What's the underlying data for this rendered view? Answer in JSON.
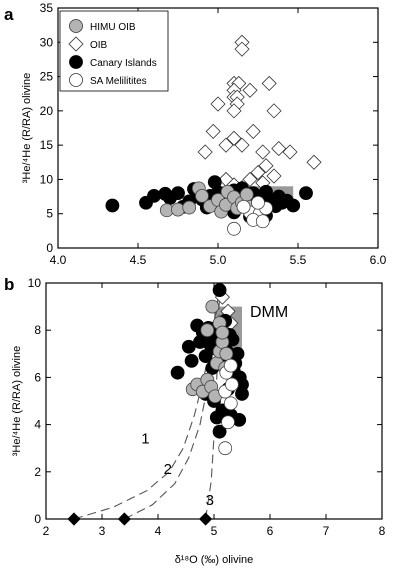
{
  "colors": {
    "himu": "#b4b4b4",
    "oib_fill": "#ffffff",
    "canary": "#000000",
    "sa": "#ffffff",
    "dmm_box": "#9a9a9a",
    "axis": "#000000"
  },
  "chart_data": [
    {
      "type": "scatter",
      "panel": "a",
      "xlim": [
        4.0,
        6.0
      ],
      "ylim": [
        0,
        35
      ],
      "xticks": [
        "4.0",
        "4.5",
        "5.0",
        "5.5",
        "6.0"
      ],
      "yticks": [
        "0",
        "5",
        "10",
        "15",
        "20",
        "25",
        "30",
        "35"
      ],
      "xlabel": "",
      "ylabel": "³He/⁴He (R/RA) olivine",
      "legend_position": "top-left",
      "legend": [
        {
          "label": "HIMU OIB",
          "key": "himu"
        },
        {
          "label": "OIB",
          "key": "oib"
        },
        {
          "label": "Canary Islands",
          "key": "canary"
        },
        {
          "label": "SA Melilitites",
          "key": "sa"
        }
      ],
      "dmm_range": {
        "x": [
          5.0,
          5.47
        ],
        "y": [
          7.0,
          9.0
        ]
      },
      "series": [
        {
          "name": "OIB",
          "key": "oib",
          "marker": "diamond",
          "points": [
            [
              5.15,
              30
            ],
            [
              5.15,
              29
            ],
            [
              5.1,
              24
            ],
            [
              5.13,
              24
            ],
            [
              5.32,
              24
            ],
            [
              5.1,
              23
            ],
            [
              5.2,
              23
            ],
            [
              5.1,
              22
            ],
            [
              5.12,
              22
            ],
            [
              5.0,
              21
            ],
            [
              5.12,
              21
            ],
            [
              5.1,
              20
            ],
            [
              5.35,
              20
            ],
            [
              4.97,
              17
            ],
            [
              5.22,
              17
            ],
            [
              5.38,
              14.5
            ],
            [
              4.92,
              14
            ],
            [
              5.1,
              16
            ],
            [
              5.05,
              15
            ],
            [
              5.15,
              15
            ],
            [
              5.28,
              14
            ],
            [
              5.45,
              14
            ],
            [
              5.3,
              12
            ],
            [
              5.25,
              11
            ],
            [
              5.6,
              12.5
            ],
            [
              5.05,
              10
            ],
            [
              5.2,
              10
            ],
            [
              5.35,
              10.5
            ],
            [
              5.28,
              9.5
            ],
            [
              5.1,
              9.2
            ],
            [
              5.15,
              8.8
            ]
          ]
        },
        {
          "name": "Canary Islands",
          "key": "canary",
          "marker": "circle",
          "points": [
            [
              4.34,
              6.2
            ],
            [
              4.55,
              6.6
            ],
            [
              4.6,
              7.6
            ],
            [
              4.67,
              7.9
            ],
            [
              4.7,
              7.3
            ],
            [
              4.75,
              8.0
            ],
            [
              4.78,
              6.0
            ],
            [
              4.82,
              6.8
            ],
            [
              4.85,
              8.6
            ],
            [
              4.88,
              8.0
            ],
            [
              4.9,
              7.1
            ],
            [
              4.95,
              7.6
            ],
            [
              4.98,
              9.6
            ],
            [
              5.0,
              8.1
            ],
            [
              5.02,
              7.0
            ],
            [
              5.05,
              7.9
            ],
            [
              5.07,
              6.8
            ],
            [
              5.1,
              8.4
            ],
            [
              5.12,
              7.5
            ],
            [
              5.15,
              8.7
            ],
            [
              5.18,
              7.3
            ],
            [
              5.2,
              6.4
            ],
            [
              5.22,
              8.0
            ],
            [
              5.25,
              7.2
            ],
            [
              5.27,
              5.8
            ],
            [
              5.3,
              8.2
            ],
            [
              5.33,
              7.0
            ],
            [
              5.36,
              6.1
            ],
            [
              5.38,
              7.5
            ],
            [
              5.4,
              6.6
            ],
            [
              5.43,
              6.9
            ],
            [
              5.47,
              6.2
            ],
            [
              5.55,
              8.0
            ],
            [
              4.93,
              5.9
            ],
            [
              5.1,
              5.2
            ],
            [
              5.2,
              4.6
            ],
            [
              5.3,
              4.7
            ],
            [
              5.0,
              6.5
            ]
          ]
        },
        {
          "name": "HIMU OIB",
          "key": "himu",
          "marker": "circle",
          "points": [
            [
              4.68,
              5.5
            ],
            [
              4.75,
              5.6
            ],
            [
              4.82,
              5.9
            ],
            [
              4.88,
              8.7
            ],
            [
              4.9,
              7.6
            ],
            [
              4.95,
              6.1
            ],
            [
              5.0,
              7.0
            ],
            [
              5.02,
              5.3
            ],
            [
              5.05,
              6.3
            ],
            [
              5.06,
              8.2
            ],
            [
              5.1,
              7.4
            ],
            [
              5.12,
              5.8
            ],
            [
              5.15,
              6.6
            ],
            [
              5.18,
              7.8
            ],
            [
              5.2,
              6.0
            ]
          ]
        },
        {
          "name": "SA Melilitites",
          "key": "sa",
          "marker": "circle",
          "points": [
            [
              5.1,
              2.8
            ],
            [
              5.2,
              5.2
            ],
            [
              5.26,
              5.0
            ],
            [
              5.22,
              4.1
            ],
            [
              5.28,
              3.9
            ],
            [
              5.3,
              5.8
            ],
            [
              5.16,
              6.0
            ],
            [
              5.25,
              6.6
            ]
          ]
        }
      ]
    },
    {
      "type": "scatter",
      "panel": "b",
      "xlim": [
        2,
        8
      ],
      "ylim": [
        0,
        10
      ],
      "xticks": [
        "2",
        "3",
        "4",
        "5",
        "6",
        "7",
        "8"
      ],
      "yticks": [
        "0",
        "2",
        "4",
        "6",
        "8",
        "10"
      ],
      "xlabel": "δ¹⁸O (‰) olivine",
      "ylabel": "³He/⁴He (R/RA) olivine",
      "dmm_label": "DMM",
      "dmm_range": {
        "x": [
          5.0,
          5.5
        ],
        "y": [
          7.2,
          9.0
        ]
      },
      "mixing_curves": [
        {
          "label": "1",
          "points": [
            [
              2.5,
              0
            ],
            [
              3.2,
              0.5
            ],
            [
              3.8,
              1.2
            ],
            [
              4.2,
              2.0
            ],
            [
              4.45,
              3.0
            ],
            [
              4.65,
              4.4
            ],
            [
              4.82,
              6.0
            ],
            [
              4.95,
              7.6
            ],
            [
              5.05,
              9.0
            ],
            [
              5.1,
              9.8
            ]
          ]
        },
        {
          "label": "2",
          "points": [
            [
              3.4,
              0
            ],
            [
              3.9,
              0.6
            ],
            [
              4.3,
              1.5
            ],
            [
              4.55,
              2.6
            ],
            [
              4.75,
              4.0
            ],
            [
              4.9,
              5.8
            ],
            [
              5.0,
              7.5
            ],
            [
              5.05,
              9.0
            ],
            [
              5.1,
              9.8
            ]
          ]
        },
        {
          "label": "3",
          "points": [
            [
              4.85,
              0
            ],
            [
              4.95,
              1.6
            ],
            [
              5.0,
              3.5
            ],
            [
              5.05,
              6.0
            ],
            [
              5.08,
              8.0
            ],
            [
              5.1,
              9.8
            ]
          ]
        }
      ],
      "endmembers": [
        [
          2.5,
          0
        ],
        [
          3.4,
          0
        ],
        [
          4.85,
          0
        ]
      ],
      "series": [
        {
          "name": "OIB",
          "key": "oib",
          "marker": "diamond",
          "points": [
            [
              5.15,
              9.4
            ],
            [
              5.25,
              8.8
            ],
            [
              5.3,
              8.3
            ]
          ]
        },
        {
          "name": "Canary Islands",
          "key": "canary",
          "marker": "circle",
          "points": [
            [
              4.35,
              6.2
            ],
            [
              4.55,
              7.3
            ],
            [
              4.6,
              6.7
            ],
            [
              4.7,
              8.2
            ],
            [
              4.75,
              7.5
            ],
            [
              4.8,
              7.9
            ],
            [
              4.85,
              6.9
            ],
            [
              4.9,
              8.1
            ],
            [
              4.93,
              7.4
            ],
            [
              4.97,
              6.4
            ],
            [
              4.98,
              7.8
            ],
            [
              5.0,
              7.7
            ],
            [
              5.03,
              8.1
            ],
            [
              5.05,
              7.2
            ],
            [
              5.08,
              6.6
            ],
            [
              5.1,
              9.7
            ],
            [
              5.12,
              8.0
            ],
            [
              5.15,
              7.4
            ],
            [
              5.18,
              6.8
            ],
            [
              5.2,
              8.4
            ],
            [
              5.23,
              7.1
            ],
            [
              5.25,
              6.2
            ],
            [
              5.28,
              7.8
            ],
            [
              5.3,
              6.9
            ],
            [
              5.33,
              7.6
            ],
            [
              5.35,
              6.3
            ],
            [
              5.38,
              6.6
            ],
            [
              5.42,
              7.0
            ],
            [
              5.46,
              6.0
            ],
            [
              5.5,
              5.7
            ],
            [
              4.85,
              5.3
            ],
            [
              5.0,
              5.0
            ],
            [
              5.25,
              5.5
            ],
            [
              5.5,
              5.3
            ],
            [
              5.15,
              4.6
            ],
            [
              5.3,
              4.4
            ],
            [
              5.05,
              4.3
            ],
            [
              5.45,
              4.2
            ],
            [
              5.1,
              3.7
            ],
            [
              4.9,
              5.7
            ]
          ]
        },
        {
          "name": "HIMU OIB",
          "key": "himu",
          "marker": "circle",
          "points": [
            [
              4.62,
              5.5
            ],
            [
              4.7,
              5.7
            ],
            [
              4.8,
              5.4
            ],
            [
              4.88,
              5.9
            ],
            [
              4.95,
              5.6
            ],
            [
              5.02,
              5.2
            ],
            [
              5.05,
              6.6
            ],
            [
              5.1,
              7.1
            ],
            [
              5.15,
              7.5
            ],
            [
              5.2,
              6.4
            ],
            [
              5.1,
              8.3
            ],
            [
              5.15,
              7.9
            ],
            [
              4.97,
              9.0
            ],
            [
              4.88,
              8.0
            ],
            [
              5.22,
              7.0
            ]
          ]
        },
        {
          "name": "SA Melilitites",
          "key": "sa",
          "marker": "circle",
          "points": [
            [
              5.2,
              3.0
            ],
            [
              5.25,
              4.1
            ],
            [
              5.3,
              4.9
            ],
            [
              5.2,
              5.4
            ],
            [
              5.32,
              5.7
            ],
            [
              5.22,
              6.2
            ],
            [
              5.3,
              6.5
            ]
          ]
        }
      ]
    }
  ]
}
